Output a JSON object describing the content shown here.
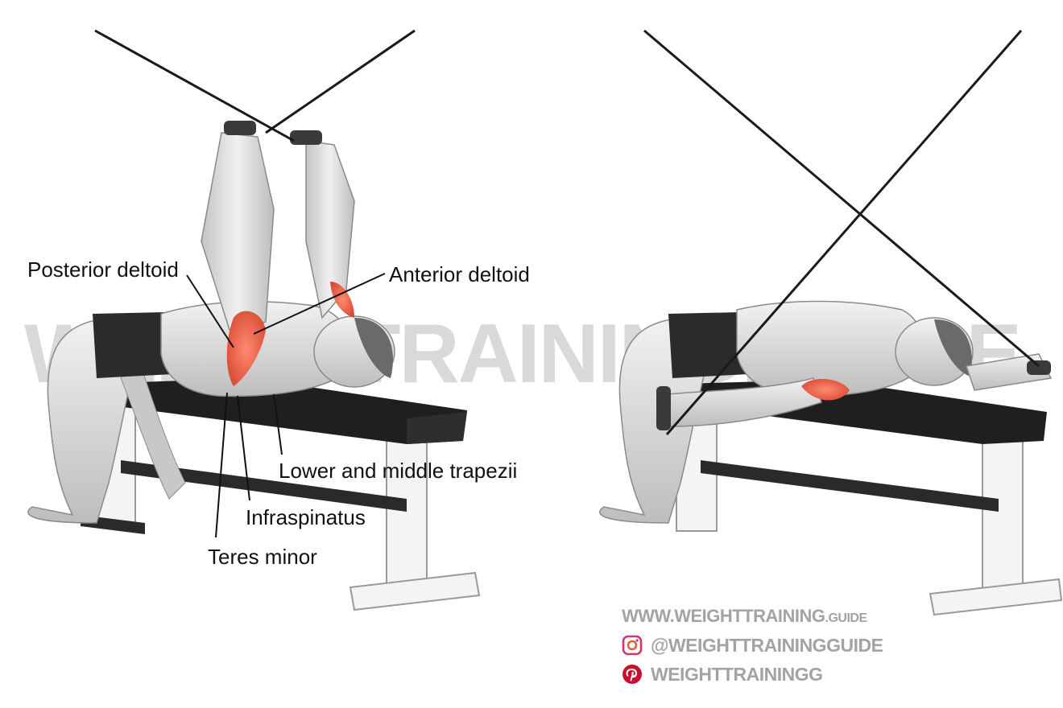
{
  "watermark": "WEIGHTTRAINING.GUIDE",
  "labels": {
    "posterior_deltoid": "Posterior deltoid",
    "anterior_deltoid": "Anterior deltoid",
    "lower_middle_trapezii": "Lower and middle trapezii",
    "infraspinatus": "Infraspinatus",
    "teres_minor": "Teres minor"
  },
  "credits": {
    "website_main": "WWW.WEIGHTTRAINING",
    "website_suffix": ".GUIDE",
    "instagram_handle": "@WEIGHTTRAININGGUIDE",
    "pinterest_handle": "WEIGHTTRAININGG"
  },
  "icons": {
    "instagram": "instagram-icon",
    "pinterest": "pinterest-icon"
  },
  "colors": {
    "muscle_highlight": "#e8604a",
    "skin": "#dcdcdc",
    "bench_pad": "#1f1f1f",
    "bench_frame": "#f4f4f4",
    "watermark": "#d9d9d9",
    "credit_text": "#a3a3a3",
    "instagram": "#d6336c",
    "pinterest": "#c8102e"
  }
}
